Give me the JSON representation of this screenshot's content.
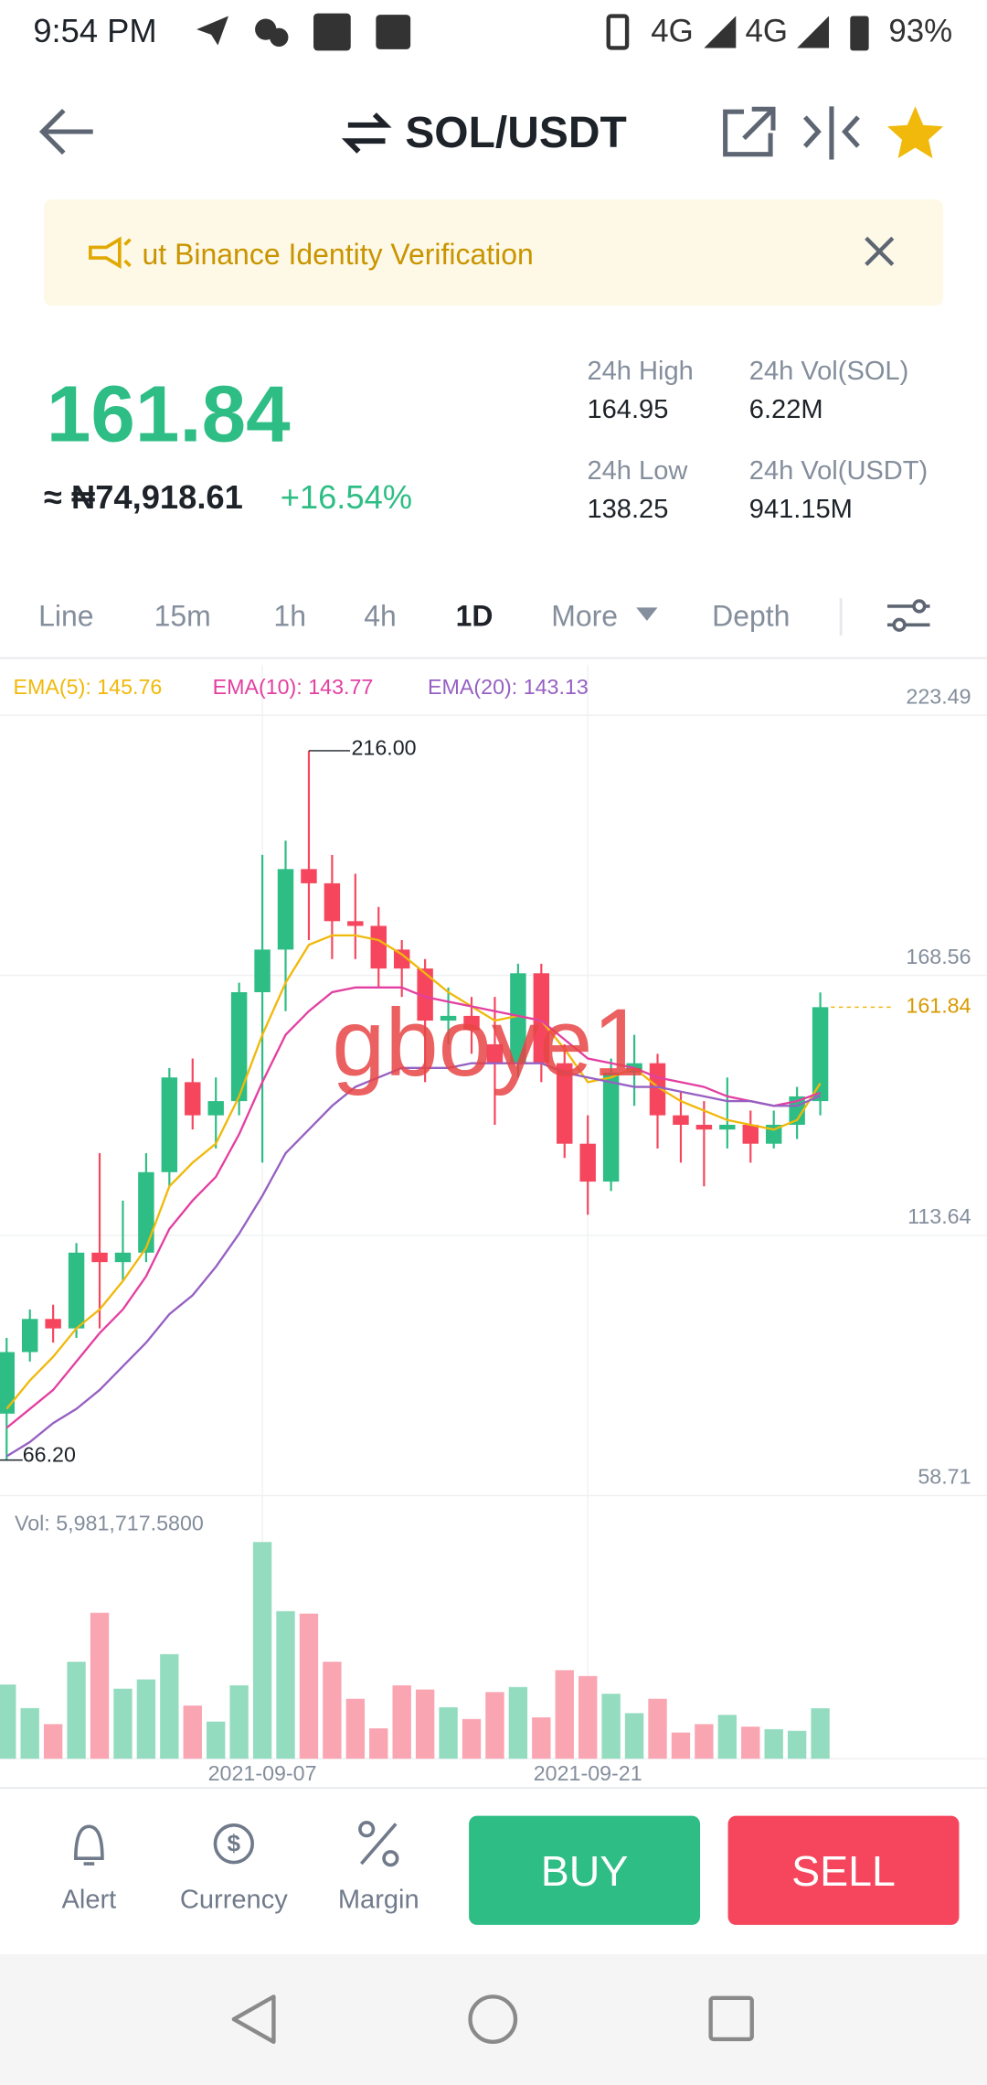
{
  "status_bar": {
    "time": "9:54 PM",
    "network_1": "4G",
    "network_2": "4G",
    "battery": "93%"
  },
  "header": {
    "pair": "SOL/USDT"
  },
  "banner": {
    "text": "ut Binance Identity Verification"
  },
  "ticker": {
    "price": "161.84",
    "fiat": "≈ ₦74,918.61",
    "change": "+16.54%",
    "stats": [
      {
        "label": "24h High",
        "value": "164.95"
      },
      {
        "label": "24h Vol(SOL)",
        "value": "6.22M"
      },
      {
        "label": "24h Low",
        "value": "138.25"
      },
      {
        "label": "24h Vol(USDT)",
        "value": "941.15M"
      }
    ]
  },
  "tabs": [
    "Line",
    "15m",
    "1h",
    "4h",
    "1D",
    "More",
    "Depth"
  ],
  "active_tab_index": 4,
  "chart_data": {
    "type": "candlestick",
    "categories": [
      null,
      null,
      null,
      null,
      null,
      null,
      null,
      null,
      null,
      null,
      null,
      "2021-09-07",
      null,
      null,
      null,
      null,
      null,
      null,
      null,
      null,
      null,
      null,
      null,
      null,
      null,
      "2021-09-21",
      null,
      null,
      null,
      null,
      null,
      null,
      null,
      null,
      null,
      null
    ],
    "open": [
      76,
      89,
      96,
      94,
      110,
      108,
      110,
      127,
      146,
      139,
      142,
      165,
      174,
      191,
      188,
      180,
      179,
      174,
      170,
      159,
      160,
      154,
      150,
      169,
      150,
      133,
      125,
      148,
      150,
      139,
      137,
      136,
      137,
      133,
      137,
      142
    ],
    "high": [
      92,
      98,
      99,
      112,
      131,
      121,
      131,
      149,
      151,
      147,
      167,
      194,
      197,
      216,
      194,
      190,
      183,
      176,
      172,
      166,
      164,
      164,
      171,
      171,
      154,
      139,
      151,
      156,
      152,
      144,
      142,
      147,
      140,
      140,
      145,
      164.95
    ],
    "low": [
      66.2,
      87,
      91,
      92,
      94,
      104,
      108,
      124,
      136,
      132,
      139,
      129,
      161,
      176,
      172,
      172,
      166,
      164,
      146,
      154,
      152,
      137,
      147,
      146,
      130,
      118,
      123,
      141,
      132,
      129,
      124,
      132,
      129,
      132,
      134,
      139
    ],
    "close": [
      89,
      96,
      94,
      110,
      108,
      110,
      127,
      147,
      139,
      142,
      165,
      174,
      191,
      188,
      180,
      179,
      170,
      170,
      159,
      160,
      157,
      150,
      169,
      150,
      133,
      125,
      148,
      150,
      139,
      137,
      136,
      137,
      133,
      137,
      143,
      161.84
    ],
    "up_color": "#2ebd85",
    "down_color": "#f6465d",
    "ylim": [
      58.71,
      223.49
    ],
    "yticks": [
      58.71,
      113.64,
      168.56,
      223.49
    ],
    "grid": true,
    "series": [
      {
        "name": "EMA(5)",
        "label": "EMA(5): 145.76",
        "color": "#f0b90b",
        "values": [
          77,
          83,
          88,
          94,
          98,
          104,
          111,
          124,
          129,
          133,
          143,
          156,
          167,
          175,
          177,
          177,
          176,
          173,
          169,
          165,
          162,
          159,
          160,
          159,
          153,
          146,
          147,
          149,
          145,
          142,
          140,
          138,
          137,
          136,
          138,
          145.76
        ]
      },
      {
        "name": "EMA(10)",
        "label": "EMA(10): 143.77",
        "color": "#e33fa1",
        "values": [
          73,
          77,
          81,
          87,
          93,
          98,
          105,
          115,
          121,
          126,
          135,
          146,
          156,
          161,
          165,
          166,
          166,
          166,
          164,
          163,
          162,
          161,
          160,
          159,
          155,
          151,
          150,
          149,
          147,
          146,
          145,
          143,
          142,
          141,
          142,
          143.77
        ]
      },
      {
        "name": "EMA(20)",
        "label": "EMA(20): 143.13",
        "color": "#9660c2",
        "values": [
          67,
          70,
          74,
          77,
          81,
          86,
          91,
          97,
          101,
          107,
          114,
          122,
          131,
          136,
          141,
          145,
          147,
          149,
          149,
          149,
          150,
          150,
          150,
          150,
          148,
          147,
          146,
          145,
          145,
          144,
          143,
          142,
          142,
          141,
          141,
          143.13
        ]
      }
    ],
    "max_label": {
      "value": 216,
      "label": "216.00"
    },
    "min_label": {
      "value": 66.2,
      "label": "66.20"
    },
    "last_price": 161.84,
    "volume": [
      8800000,
      6000000,
      4100000,
      11500000,
      17300000,
      8300000,
      9400000,
      12400000,
      6300000,
      4400000,
      8700000,
      25700000,
      17500000,
      17200000,
      11500000,
      7100000,
      3600000,
      8700000,
      8200000,
      6100000,
      4700000,
      7900000,
      8500000,
      4900000,
      10500000,
      9800000,
      7700000,
      5400000,
      7100000,
      3100000,
      4100000,
      5200000,
      3800000,
      3500000,
      3300000,
      5981717.58
    ],
    "volume_label": "Vol: 5,981,717.5800",
    "volume_up_color": "#94dcbf",
    "volume_down_color": "#f9a5b2"
  },
  "watermark": "gboye1",
  "bottom_bar": {
    "items": [
      "Alert",
      "Currency",
      "Margin"
    ],
    "buy": "BUY",
    "sell": "SELL"
  }
}
